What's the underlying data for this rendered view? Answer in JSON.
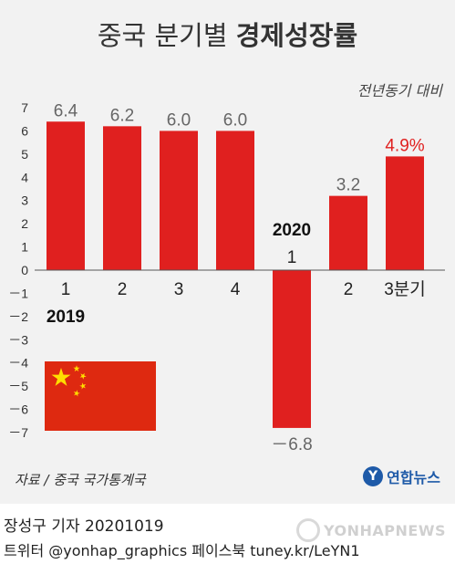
{
  "title_light": "중국 분기별 ",
  "title_bold": "경제성장률",
  "unit_note": "전년동기 대비",
  "source": "자료 / 중국 국가통계국",
  "agency": "연합뉴스",
  "byline": "장성구 기자  20201019",
  "social": "트위터 @yonhap_graphics  페이스북 tuney.kr/LeYN1",
  "watermark": "YONHAPNEWS",
  "colors": {
    "bar": "#e0201f",
    "highlight": "#e0201f",
    "label": "#666666",
    "flag": "#de2910",
    "star": "#ffde00"
  },
  "chart_data": {
    "type": "bar",
    "categories": [
      "1",
      "2",
      "3",
      "4",
      "1",
      "2",
      "3분기"
    ],
    "years": [
      {
        "label": "2019",
        "at_index": 0
      },
      {
        "label": "2020",
        "at_index": 4
      }
    ],
    "values": [
      6.4,
      6.2,
      6.0,
      6.0,
      -6.8,
      3.2,
      4.9
    ],
    "value_labels": [
      "6.4",
      "6.2",
      "6.0",
      "6.0",
      "－6.8",
      "3.2",
      "4.9%"
    ],
    "highlight_index": 6,
    "ylim": [
      -7,
      7
    ],
    "yticks": [
      7,
      6,
      5,
      4,
      3,
      2,
      1,
      0,
      -1,
      -2,
      -3,
      -4,
      -5,
      -6,
      -7
    ],
    "ytick_labels": [
      "7",
      "6",
      "5",
      "4",
      "3",
      "2",
      "1",
      "0",
      "－1",
      "－2",
      "－3",
      "－4",
      "－5",
      "－6",
      "－7"
    ],
    "xlabel": "",
    "ylabel": ""
  }
}
